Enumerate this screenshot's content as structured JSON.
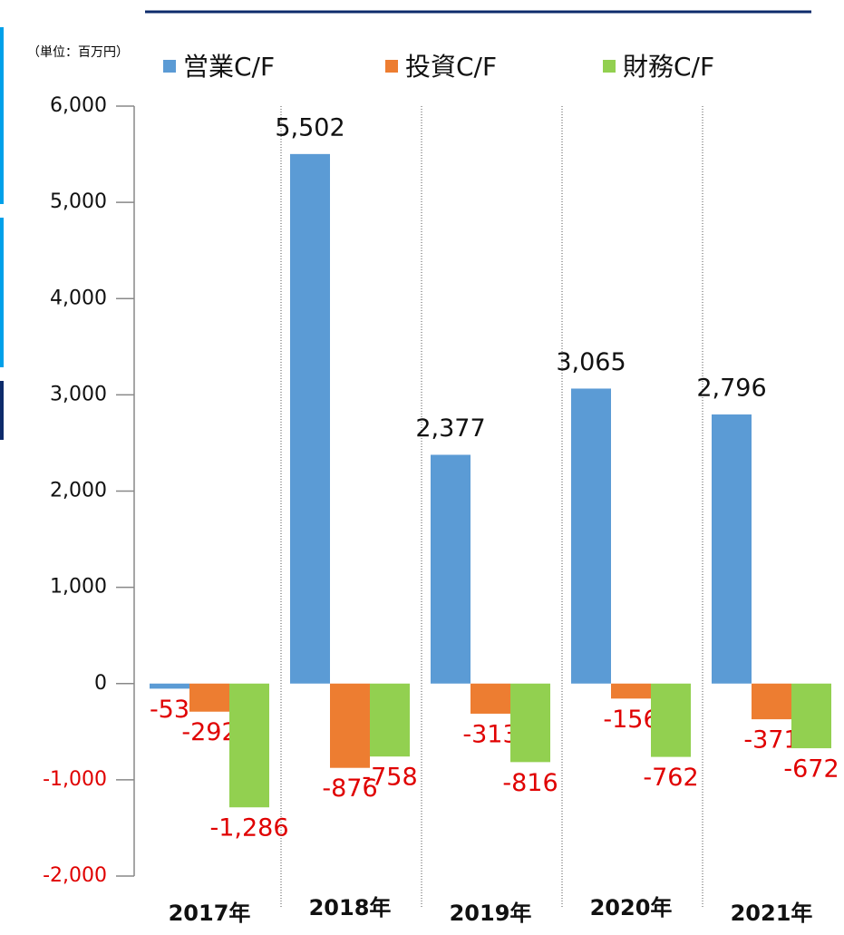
{
  "chart_data": {
    "type": "bar",
    "unit_label": "（単位：百万円）",
    "categories": [
      "2017年",
      "2018年",
      "2019年",
      "2020年",
      "2021年"
    ],
    "series": [
      {
        "name": "営業C/F",
        "color": "#5b9bd5",
        "values": [
          -53,
          5502,
          2377,
          3065,
          2796
        ],
        "value_labels": [
          "-53",
          "5,502",
          "2,377",
          "3,065",
          "2,796"
        ]
      },
      {
        "name": "投資C/F",
        "color": "#ed7d31",
        "values": [
          -292,
          -876,
          -313,
          -156,
          -371
        ],
        "value_labels": [
          "-292",
          "-876",
          "-313",
          "-156",
          "-371"
        ]
      },
      {
        "name": "財務C/F",
        "color": "#92d050",
        "values": [
          -1286,
          -758,
          -816,
          -762,
          -672
        ],
        "value_labels": [
          "-1,286",
          "-758",
          "-816",
          "-762",
          "-672"
        ]
      }
    ],
    "ylim": [
      -2000,
      6000
    ],
    "yticks": [
      {
        "value": -2000,
        "label": "-2,000"
      },
      {
        "value": -1000,
        "label": "-1,000"
      },
      0,
      {
        "value": 1000,
        "label": "1,000"
      },
      {
        "value": 2000,
        "label": "2,000"
      },
      {
        "value": 3000,
        "label": "3,000"
      },
      {
        "value": 4000,
        "label": "4,000"
      },
      {
        "value": 5000,
        "label": "5,000"
      },
      {
        "value": 6000,
        "label": "6,000"
      }
    ]
  }
}
